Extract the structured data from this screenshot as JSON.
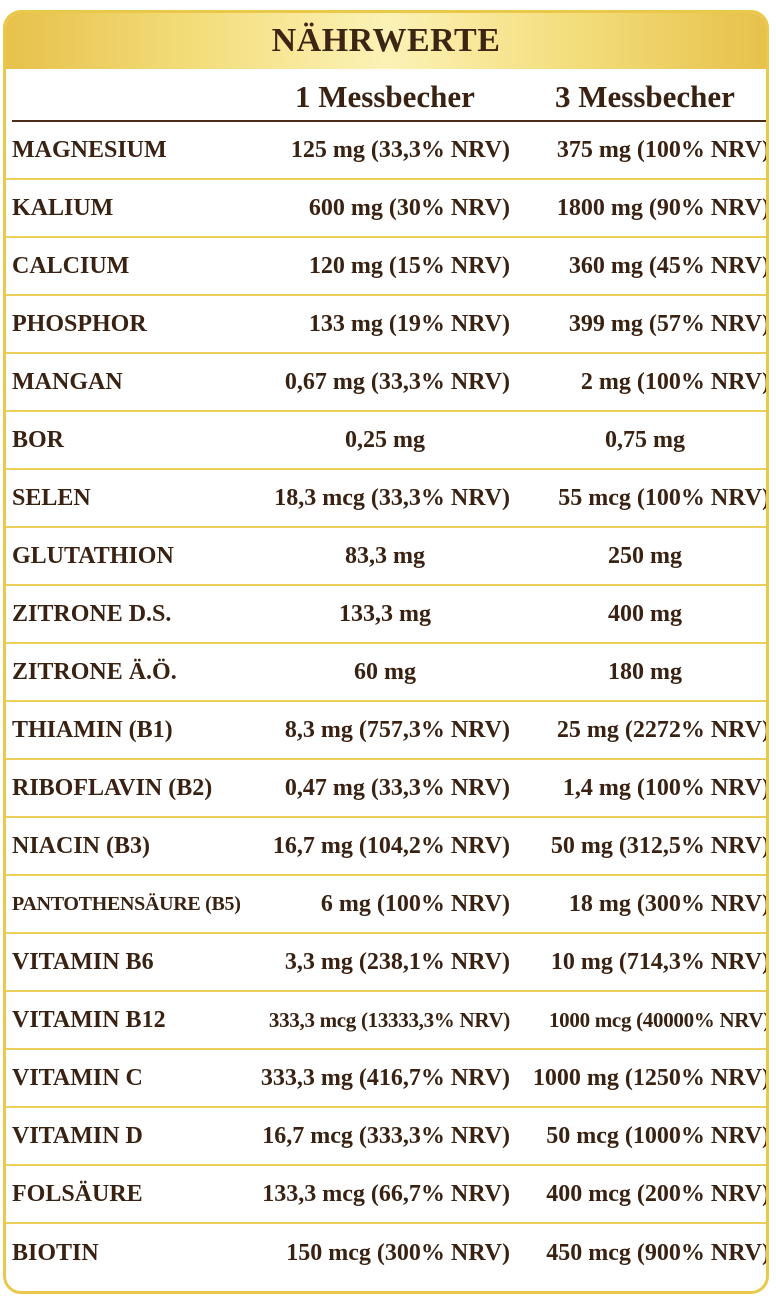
{
  "title": "NÄHRWERTE",
  "columns": [
    "1 Messbecher",
    "3 Messbecher"
  ],
  "rows": [
    {
      "name": "MAGNESIUM",
      "v1": "125 mg (33,3% NRV)",
      "v2": "375 mg (100% NRV)"
    },
    {
      "name": "KALIUM",
      "v1": "600 mg (30% NRV)",
      "v2": "1800 mg (90% NRV)"
    },
    {
      "name": "CALCIUM",
      "v1": "120 mg (15% NRV)",
      "v2": "360 mg (45% NRV)"
    },
    {
      "name": "PHOSPHOR",
      "v1": "133 mg (19% NRV)",
      "v2": "399 mg (57% NRV)"
    },
    {
      "name": "MANGAN",
      "v1": "0,67 mg (33,3% NRV)",
      "v2": "2 mg (100% NRV)"
    },
    {
      "name": "BOR",
      "v1": "0,25 mg",
      "v2": "0,75 mg"
    },
    {
      "name": "SELEN",
      "v1": "18,3 mcg (33,3% NRV)",
      "v2": "55 mcg (100% NRV)"
    },
    {
      "name": "GLUTATHION",
      "v1": "83,3 mg",
      "v2": "250 mg"
    },
    {
      "name": "ZITRONE D.S.",
      "v1": "133,3 mg",
      "v2": "400 mg"
    },
    {
      "name": "ZITRONE Ä.Ö.",
      "v1": "60 mg",
      "v2": "180 mg"
    },
    {
      "name": "THIAMIN (B1)",
      "v1": "8,3 mg (757,3% NRV)",
      "v2": "25 mg (2272% NRV)"
    },
    {
      "name": "RIBOFLAVIN (B2)",
      "v1": "0,47 mg (33,3% NRV)",
      "v2": "1,4 mg (100% NRV)"
    },
    {
      "name": "NIACIN (B3)",
      "v1": "16,7 mg (104,2% NRV)",
      "v2": "50 mg (312,5% NRV)"
    },
    {
      "name": "PANTOTHENSÄURE (B5)",
      "v1": "6 mg (100% NRV)",
      "v2": "18 mg (300% NRV)"
    },
    {
      "name": "VITAMIN B6",
      "v1": "3,3 mg (238,1% NRV)",
      "v2": "10 mg (714,3% NRV)"
    },
    {
      "name": "VITAMIN B12",
      "v1": "333,3 mcg (13333,3% NRV)",
      "v2": "1000 mcg (40000% NRV)"
    },
    {
      "name": "VITAMIN C",
      "v1": "333,3 mg (416,7% NRV)",
      "v2": "1000 mg (1250% NRV)"
    },
    {
      "name": "VITAMIN D",
      "v1": "16,7 mcg (333,3% NRV)",
      "v2": "50 mcg (1000% NRV)"
    },
    {
      "name": "FOLSÄURE",
      "v1": "133,3 mcg (66,7% NRV)",
      "v2": "400 mcg (200% NRV)"
    },
    {
      "name": "BIOTIN",
      "v1": "150 mcg (300% NRV)",
      "v2": "450 mcg (900% NRV)"
    }
  ],
  "colors": {
    "border": "#e9c84a",
    "text": "#3a2213",
    "rule": "#ead05a"
  }
}
